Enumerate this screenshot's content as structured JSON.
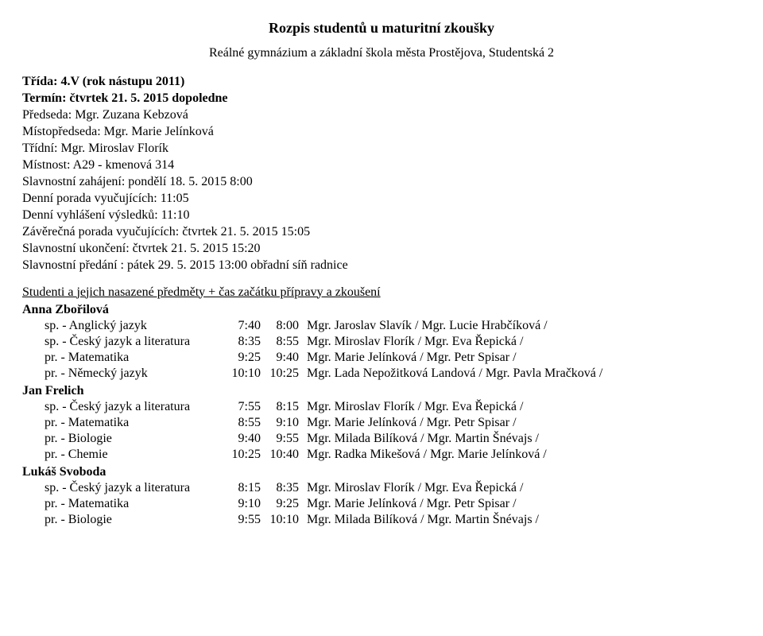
{
  "header": {
    "title": "Rozpis studentů u maturitní zkoušky",
    "subtitle": "Reálné gymnázium a základní škola města Prostějova, Studentská 2"
  },
  "info": {
    "class_label": "Třída: 4.V (rok nástupu 2011)",
    "term_label": "Termín: čtvrtek 21. 5. 2015 dopoledne",
    "chair": "Předseda: Mgr. Zuzana Kebzová",
    "vicechair": "Místopředseda: Mgr. Marie Jelínková",
    "class_teacher": "Třídní: Mgr. Miroslav Florík",
    "room": "Místnost: A29 - kmenová 314",
    "opening": "Slavnostní zahájení:   pondělí 18. 5. 2015 8:00",
    "daily_meeting": "Denní porada vyučujících:   11:05",
    "daily_results": "Denní vyhlášení výsledků:   11:10",
    "final_meeting": "Závěrečná porada vyučujících:   čtvrtek 21. 5. 2015  15:05",
    "closing": "Slavnostní ukončení:   čtvrtek 21. 5. 2015  15:20",
    "ceremony": "Slavnostní předání :   pátek 29. 5. 2015  13:00 obřadní síň radnice"
  },
  "students_header": "Studenti a jejich nasazené předměty + čas začátku přípravy a zkoušení",
  "students": [
    {
      "name": "Anna Zbořilová",
      "rows": [
        {
          "subject": "sp. - Anglický jazyk",
          "t1": "7:40",
          "t2": "8:00",
          "examiner": "Mgr. Jaroslav Slavík / Mgr. Lucie Hrabčíková /"
        },
        {
          "subject": "sp. - Český jazyk a literatura",
          "t1": "8:35",
          "t2": "8:55",
          "examiner": "Mgr. Miroslav Florík / Mgr. Eva Řepická /"
        },
        {
          "subject": "pr. - Matematika",
          "t1": "9:25",
          "t2": "9:40",
          "examiner": "Mgr. Marie Jelínková / Mgr. Petr Spisar /"
        },
        {
          "subject": "pr. - Německý jazyk",
          "t1": "10:10",
          "t2": "10:25",
          "examiner": "Mgr. Lada Nepožitková Landová / Mgr. Pavla Mračková /"
        }
      ]
    },
    {
      "name": "Jan Frelich",
      "rows": [
        {
          "subject": "sp. - Český jazyk a literatura",
          "t1": "7:55",
          "t2": "8:15",
          "examiner": "Mgr. Miroslav Florík / Mgr. Eva Řepická /"
        },
        {
          "subject": "pr. - Matematika",
          "t1": "8:55",
          "t2": "9:10",
          "examiner": "Mgr. Marie Jelínková / Mgr. Petr Spisar /"
        },
        {
          "subject": "pr. - Biologie",
          "t1": "9:40",
          "t2": "9:55",
          "examiner": "Mgr. Milada Bilíková / Mgr. Martin Šnévajs /"
        },
        {
          "subject": "pr. - Chemie",
          "t1": "10:25",
          "t2": "10:40",
          "examiner": "Mgr. Radka Mikešová / Mgr. Marie Jelínková /"
        }
      ]
    },
    {
      "name": "Lukáš Svoboda",
      "rows": [
        {
          "subject": "sp. - Český jazyk a literatura",
          "t1": "8:15",
          "t2": "8:35",
          "examiner": "Mgr. Miroslav Florík / Mgr. Eva Řepická /"
        },
        {
          "subject": "pr. - Matematika",
          "t1": "9:10",
          "t2": "9:25",
          "examiner": "Mgr. Marie Jelínková / Mgr. Petr Spisar /"
        },
        {
          "subject": "pr. - Biologie",
          "t1": "9:55",
          "t2": "10:10",
          "examiner": "Mgr. Milada Bilíková / Mgr. Martin Šnévajs /"
        }
      ]
    }
  ]
}
